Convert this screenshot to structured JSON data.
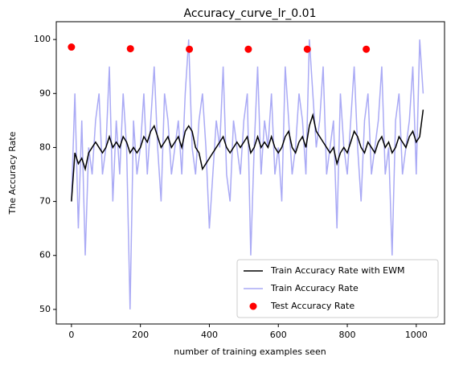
{
  "chart_data": {
    "type": "line",
    "title": "Accuracy_curve_lr_0.01",
    "x_label": "number of training examples seen",
    "y_label": "The Accuracy Rate",
    "xlim": [
      -44,
      1082
    ],
    "ylim": [
      47.3,
      103.3
    ],
    "xticks": [
      0,
      200,
      400,
      600,
      800,
      1000
    ],
    "yticks": [
      50,
      60,
      70,
      80,
      90,
      100
    ],
    "legend": "lower right",
    "series": [
      {
        "name": "Train Accuracy Rate with EWM",
        "color": "#000000",
        "type": "line",
        "x": [
          0,
          10,
          20,
          30,
          40,
          50,
          60,
          70,
          80,
          90,
          100,
          110,
          120,
          130,
          140,
          150,
          160,
          170,
          180,
          190,
          200,
          210,
          220,
          230,
          240,
          250,
          260,
          270,
          280,
          290,
          300,
          310,
          320,
          330,
          340,
          350,
          360,
          370,
          380,
          390,
          400,
          410,
          420,
          430,
          440,
          450,
          460,
          470,
          480,
          490,
          500,
          510,
          520,
          530,
          540,
          550,
          560,
          570,
          580,
          590,
          600,
          610,
          620,
          630,
          640,
          650,
          660,
          670,
          680,
          690,
          700,
          710,
          720,
          730,
          740,
          750,
          760,
          770,
          780,
          790,
          800,
          810,
          820,
          830,
          840,
          850,
          860,
          870,
          880,
          890,
          900,
          910,
          920,
          930,
          940,
          950,
          960,
          970,
          980,
          990,
          1000,
          1010,
          1020
        ],
        "values": [
          70,
          79,
          77,
          78,
          76,
          79,
          80,
          81,
          80,
          79,
          80,
          82,
          80,
          81,
          80,
          82,
          81,
          79,
          80,
          79,
          80,
          82,
          81,
          83,
          84,
          82,
          80,
          81,
          82,
          80,
          81,
          82,
          80,
          83,
          84,
          83,
          80,
          79,
          76,
          77,
          78,
          79,
          80,
          81,
          82,
          80,
          79,
          80,
          81,
          80,
          81,
          82,
          79,
          80,
          82,
          80,
          81,
          80,
          82,
          80,
          79,
          80,
          82,
          83,
          80,
          79,
          81,
          82,
          80,
          84,
          86,
          83,
          82,
          81,
          80,
          79,
          80,
          77,
          79,
          80,
          79,
          81,
          83,
          82,
          80,
          79,
          81,
          80,
          79,
          81,
          82,
          80,
          81,
          79,
          80,
          82,
          81,
          80,
          82,
          83,
          81,
          82,
          87
        ]
      },
      {
        "name": "Train Accuracy Rate",
        "color": "#aaaaf5",
        "type": "line",
        "x": [
          0,
          10,
          20,
          30,
          40,
          50,
          60,
          70,
          80,
          90,
          100,
          110,
          120,
          130,
          140,
          150,
          160,
          170,
          180,
          190,
          200,
          210,
          220,
          230,
          240,
          250,
          260,
          270,
          280,
          290,
          300,
          310,
          320,
          330,
          340,
          350,
          360,
          370,
          380,
          390,
          400,
          410,
          420,
          430,
          440,
          450,
          460,
          470,
          480,
          490,
          500,
          510,
          520,
          530,
          540,
          550,
          560,
          570,
          580,
          590,
          600,
          610,
          620,
          630,
          640,
          650,
          660,
          670,
          680,
          690,
          700,
          710,
          720,
          730,
          740,
          750,
          760,
          770,
          780,
          790,
          800,
          810,
          820,
          830,
          840,
          850,
          860,
          870,
          880,
          890,
          900,
          910,
          920,
          930,
          940,
          950,
          960,
          970,
          980,
          990,
          1000,
          1010,
          1020
        ],
        "values": [
          70,
          90,
          65,
          85,
          60,
          80,
          75,
          85,
          90,
          75,
          80,
          95,
          70,
          85,
          75,
          90,
          80,
          50,
          85,
          75,
          80,
          90,
          75,
          85,
          95,
          80,
          70,
          90,
          85,
          75,
          80,
          85,
          75,
          90,
          100,
          80,
          75,
          85,
          90,
          80,
          65,
          75,
          85,
          80,
          95,
          75,
          70,
          85,
          80,
          75,
          85,
          90,
          60,
          80,
          95,
          75,
          85,
          80,
          90,
          75,
          80,
          70,
          95,
          85,
          75,
          80,
          90,
          85,
          75,
          100,
          90,
          80,
          85,
          95,
          75,
          80,
          85,
          65,
          90,
          80,
          75,
          85,
          95,
          80,
          70,
          85,
          90,
          75,
          80,
          85,
          95,
          75,
          80,
          60,
          85,
          90,
          75,
          80,
          85,
          95,
          75,
          100,
          90
        ]
      },
      {
        "name": "Test Accuracy Rate",
        "color": "#ff0000",
        "type": "scatter",
        "x": [
          0,
          171,
          342,
          513,
          684,
          855
        ],
        "values": [
          98.6,
          98.3,
          98.2,
          98.2,
          98.2,
          98.2
        ]
      }
    ]
  }
}
